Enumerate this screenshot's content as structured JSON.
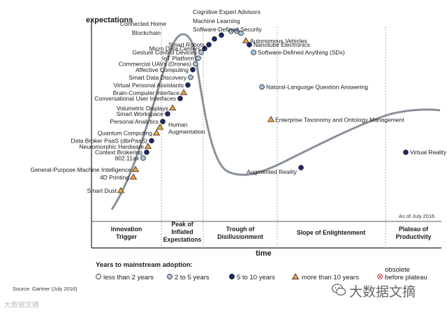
{
  "chart_data": {
    "type": "scatter",
    "y_axis_title": "expectations",
    "x_axis_title": "time",
    "as_of": "As of July 2016",
    "source": "Source: Gartner (July 2016)",
    "phases": [
      "Innovation\nTrigger",
      "Peak of\nInflated\nExpectations",
      "Trough of\nDisillusionment",
      "Slope of Enlightenment",
      "Plateau of\nProductivity"
    ],
    "legend": {
      "title": "Years to mainstream adoption:",
      "items": [
        {
          "symbol": "white-circle",
          "label": "less than 2 years"
        },
        {
          "symbol": "lightblue-circle",
          "label": "2 to 5 years"
        },
        {
          "symbol": "navy-circle",
          "label": "5 to 10 years"
        },
        {
          "symbol": "orange-triangle",
          "label": "more than 10 years"
        },
        {
          "symbol": "red-crossed-circle",
          "label_top": "obsolete",
          "label": "before plateau"
        }
      ]
    },
    "colors": {
      "curve": "#8a9199",
      "navy": "#1c2a6b",
      "light_blue": "#a9c6e3",
      "orange": "#f2a13c",
      "red": "#d9534f",
      "axis": "#222222"
    },
    "technologies": [
      {
        "name": "Smart Dust",
        "time": 4.2,
        "expectations": 16,
        "adoption": "more than 10 years"
      },
      {
        "name": "4D Printing",
        "time": 6.0,
        "expectations": 23,
        "adoption": "more than 10 years"
      },
      {
        "name": "General-Purpose Machine Intelligence",
        "time": 6.3,
        "expectations": 27,
        "adoption": "more than 10 years"
      },
      {
        "name": "802.11ax",
        "time": 7.4,
        "expectations": 33,
        "adoption": "2 to 5 years"
      },
      {
        "name": "Context Brokering",
        "time": 7.9,
        "expectations": 36,
        "adoption": "5 to 10 years"
      },
      {
        "name": "Neuromorphic Hardware",
        "time": 8.1,
        "expectations": 39,
        "adoption": "more than 10 years"
      },
      {
        "name": "Data Broker PaaS (dbrPaaS)",
        "time": 8.6,
        "expectations": 42,
        "adoption": "5 to 10 years"
      },
      {
        "name": "Quantum Computing",
        "time": 9.3,
        "expectations": 46,
        "adoption": "more than 10 years"
      },
      {
        "name": "Human Augmentation",
        "time": 9.8,
        "expectations": 49,
        "adoption": "more than 10 years"
      },
      {
        "name": "Personal Analytics",
        "time": 10.2,
        "expectations": 52,
        "adoption": "5 to 10 years"
      },
      {
        "name": "Smart Workspace",
        "time": 10.9,
        "expectations": 56,
        "adoption": "5 to 10 years"
      },
      {
        "name": "Volumetric Displays",
        "time": 11.6,
        "expectations": 59,
        "adoption": "more than 10 years"
      },
      {
        "name": "Conversational User Interfaces",
        "time": 12.7,
        "expectations": 64,
        "adoption": "5 to 10 years"
      },
      {
        "name": "Brain-Computer Interface",
        "time": 13.2,
        "expectations": 67,
        "adoption": "more than 10 years"
      },
      {
        "name": "Virtual Personal Assistants",
        "time": 13.8,
        "expectations": 71,
        "adoption": "5 to 10 years"
      },
      {
        "name": "Smart Data Discovery",
        "time": 14.2,
        "expectations": 75,
        "adoption": "2 to 5 years"
      },
      {
        "name": "Affective Computing",
        "time": 14.5,
        "expectations": 79,
        "adoption": "5 to 10 years"
      },
      {
        "name": "Commercial UAVs (Drones)",
        "time": 14.9,
        "expectations": 82,
        "adoption": "2 to 5 years"
      },
      {
        "name": "IoT Platform",
        "time": 15.3,
        "expectations": 85,
        "adoption": "2 to 5 years"
      },
      {
        "name": "Gesture Control Devices",
        "time": 15.7,
        "expectations": 88,
        "adoption": "2 to 5 years"
      },
      {
        "name": "Micro Data Centers",
        "time": 16.2,
        "expectations": 90,
        "adoption": "5 to 10 years"
      },
      {
        "name": "Smart Robots",
        "time": 16.8,
        "expectations": 92,
        "adoption": "5 to 10 years"
      },
      {
        "name": "Blockchain",
        "time": 17.6,
        "expectations": 95,
        "adoption": "5 to 10 years"
      },
      {
        "name": "Connected Home",
        "time": 18.6,
        "expectations": 97,
        "adoption": "5 to 10 years"
      },
      {
        "name": "Cognitive Expert Advisors",
        "time": 20.0,
        "expectations": 99,
        "adoption": "2 to 5 years"
      },
      {
        "name": "Machine Learning",
        "time": 20.8,
        "expectations": 99,
        "adoption": "2 to 5 years"
      },
      {
        "name": "Software-Defined Security",
        "time": 21.4,
        "expectations": 98,
        "adoption": "2 to 5 years"
      },
      {
        "name": "Autonomous Vehicles",
        "time": 22.1,
        "expectations": 94,
        "adoption": "more than 10 years"
      },
      {
        "name": "Nanotube Electronics",
        "time": 22.6,
        "expectations": 92,
        "adoption": "5 to 10 years"
      },
      {
        "name": "Software-Defined Anything (SDx)",
        "time": 23.2,
        "expectations": 88,
        "adoption": "2 to 5 years"
      },
      {
        "name": "Natural-Language Question Answering",
        "time": 24.4,
        "expectations": 70,
        "adoption": "2 to 5 years"
      },
      {
        "name": "Enterprise Taxonomy and Ontology Management",
        "time": 25.7,
        "expectations": 53,
        "adoption": "more than 10 years"
      },
      {
        "name": "Augmented Reality",
        "time": 30.0,
        "expectations": 28,
        "adoption": "5 to 10 years"
      },
      {
        "name": "Virtual Reality",
        "time": 45.0,
        "expectations": 36,
        "adoption": "5 to 10 years"
      }
    ]
  },
  "watermark": {
    "left": "大数据文摘",
    "right": "大数据文摘"
  }
}
